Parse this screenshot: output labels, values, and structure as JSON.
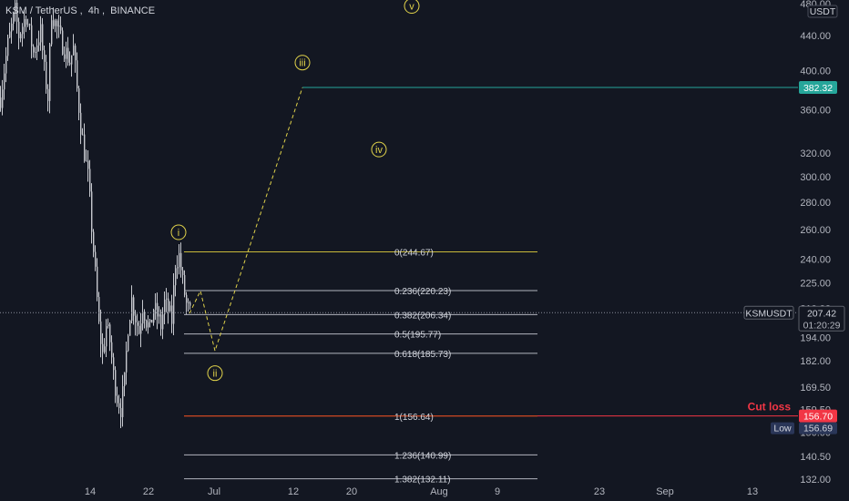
{
  "symbol_header": {
    "symbol": "KSM / TetherUS",
    "interval": "4h",
    "exchange": "BINANCE",
    "currency_tag": "USDT"
  },
  "colors": {
    "background": "#131722",
    "candle": "#c7c9cf",
    "fib_gold": "#c8b93a",
    "fib_grey": "#b2b5be",
    "wave": "#e0d24a",
    "target": "#26a69a",
    "cut_loss": "#f23645",
    "fib_100_line": "#ff5722",
    "low_tag": "#2a3658"
  },
  "chart_data": {
    "type": "candlestick",
    "title": "KSM / TetherUS, 4h, BINANCE",
    "y_scale": "log",
    "ylim": [
      128,
      480
    ],
    "x_ticks": [
      "14",
      "22",
      "Jul",
      "12",
      "20",
      "Aug",
      "9",
      "23",
      "Sep",
      "13"
    ],
    "y_ticks": [
      132.0,
      140.5,
      150.0,
      159.5,
      169.5,
      182.0,
      194.0,
      210.0,
      225.0,
      240.0,
      260.0,
      280.0,
      300.0,
      320.0,
      360.0,
      400.0,
      440.0,
      480.0
    ],
    "price_series": [
      {
        "t": 0,
        "p": 372
      },
      {
        "t": 2,
        "p": 430
      },
      {
        "t": 4,
        "p": 470
      },
      {
        "t": 5,
        "p": 440
      },
      {
        "t": 7,
        "p": 465
      },
      {
        "t": 9,
        "p": 420
      },
      {
        "t": 11,
        "p": 445
      },
      {
        "t": 12,
        "p": 400
      },
      {
        "t": 13,
        "p": 372
      },
      {
        "t": 14,
        "p": 470
      },
      {
        "t": 15,
        "p": 455
      },
      {
        "t": 17,
        "p": 430
      },
      {
        "t": 19,
        "p": 410
      },
      {
        "t": 20,
        "p": 425
      },
      {
        "t": 21,
        "p": 380
      },
      {
        "t": 22,
        "p": 345
      },
      {
        "t": 23,
        "p": 320
      },
      {
        "t": 24,
        "p": 300
      },
      {
        "t": 25,
        "p": 262
      },
      {
        "t": 26,
        "p": 230
      },
      {
        "t": 27,
        "p": 200
      },
      {
        "t": 28,
        "p": 185
      },
      {
        "t": 29,
        "p": 200
      },
      {
        "t": 30,
        "p": 192
      },
      {
        "t": 31,
        "p": 175
      },
      {
        "t": 32,
        "p": 165
      },
      {
        "t": 33,
        "p": 160
      },
      {
        "t": 34,
        "p": 172
      },
      {
        "t": 35,
        "p": 200
      },
      {
        "t": 36,
        "p": 215
      },
      {
        "t": 37,
        "p": 205
      },
      {
        "t": 38,
        "p": 197
      },
      {
        "t": 39,
        "p": 212
      },
      {
        "t": 40,
        "p": 203
      },
      {
        "t": 41,
        "p": 198
      },
      {
        "t": 42,
        "p": 210
      },
      {
        "t": 43,
        "p": 206
      },
      {
        "t": 44,
        "p": 200
      },
      {
        "t": 45,
        "p": 213
      },
      {
        "t": 46,
        "p": 209
      },
      {
        "t": 47,
        "p": 203
      },
      {
        "t": 48,
        "p": 238
      },
      {
        "t": 49,
        "p": 242
      },
      {
        "t": 50,
        "p": 225
      },
      {
        "t": 51,
        "p": 212
      },
      {
        "t": 52,
        "p": 207
      }
    ],
    "fib_levels": [
      {
        "ratio": "0",
        "price": 244.67,
        "label": "0(244.67)"
      },
      {
        "ratio": "0.236",
        "price": 220.23,
        "label": "0.236(220.23)"
      },
      {
        "ratio": "0.382",
        "price": 206.34,
        "label": "0.382(206.34)"
      },
      {
        "ratio": "0.5",
        "price": 195.77,
        "label": "0.5(195.77)"
      },
      {
        "ratio": "0.618",
        "price": 185.73,
        "label": "0.618(185.73)"
      },
      {
        "ratio": "1",
        "price": 156.64,
        "label": "1(156.64)"
      },
      {
        "ratio": "1.236",
        "price": 140.99,
        "label": "1.236(140.99)"
      },
      {
        "ratio": "1.382",
        "price": 132.11,
        "label": "1.382(132.11)"
      }
    ],
    "projection_path": [
      {
        "t": 52,
        "p": 207
      },
      {
        "t": 55,
        "p": 220
      },
      {
        "t": 59,
        "p": 187
      },
      {
        "t": 83,
        "p": 382.32
      }
    ],
    "elliott_waves": [
      {
        "label": "i",
        "t": 49,
        "p": 258
      },
      {
        "label": "ii",
        "t": 59,
        "p": 176
      },
      {
        "label": "iii",
        "t": 83,
        "p": 409
      },
      {
        "label": "iv",
        "t": 104,
        "p": 323
      },
      {
        "label": "v",
        "t": 113,
        "p": 477
      }
    ],
    "target": {
      "price": 382.32,
      "label": "382.32"
    },
    "cut_loss": {
      "price": 156.7,
      "label": "156.70",
      "annotation": "Cut loss"
    },
    "low": {
      "price": 156.69,
      "label": "Low",
      "value": "156.69"
    },
    "last_price": {
      "symbol": "KSMUSDT",
      "price": "207.42",
      "countdown": "01:20:29"
    }
  }
}
